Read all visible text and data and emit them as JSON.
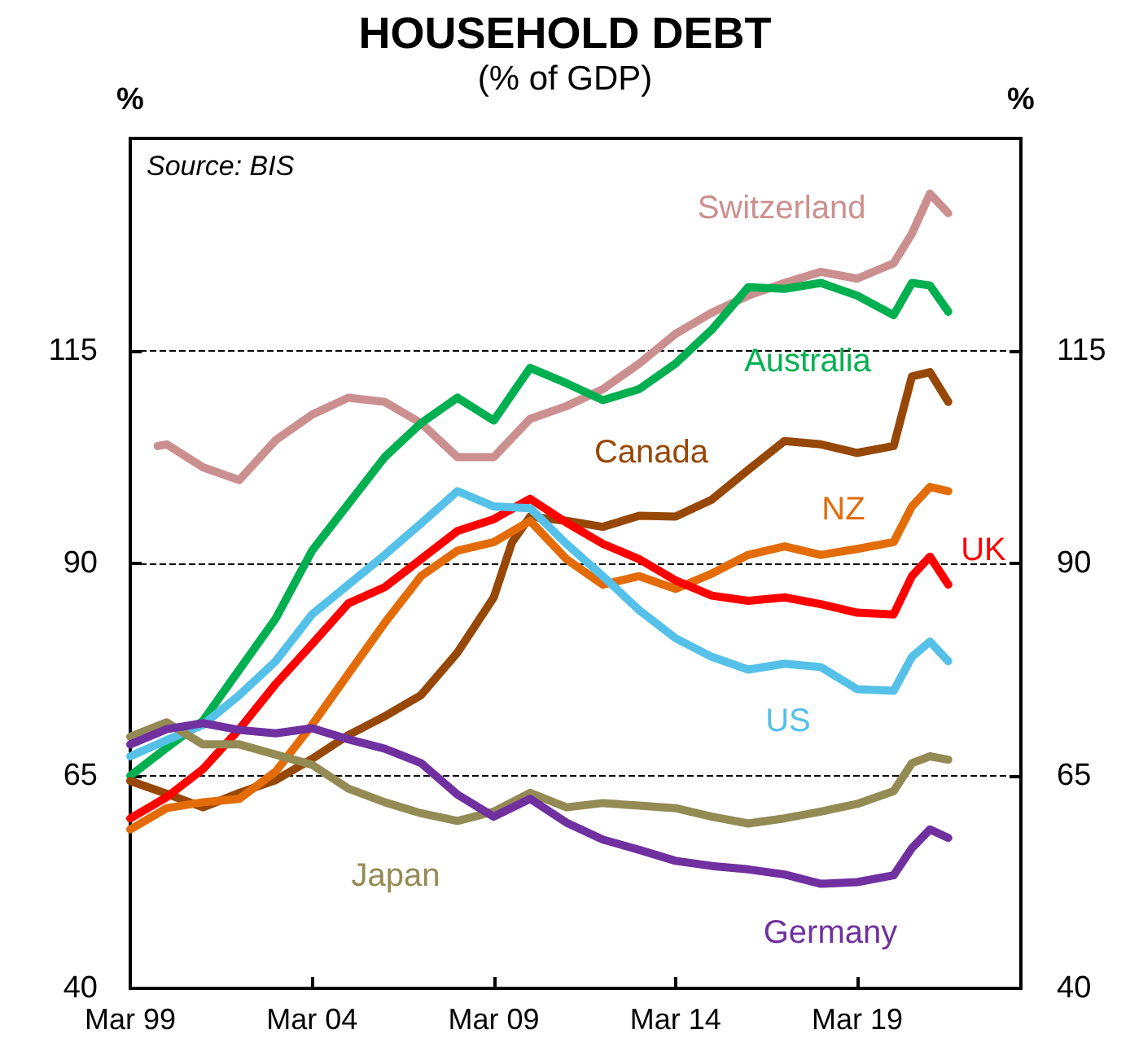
{
  "chart_data": {
    "type": "line",
    "title": "HOUSEHOLD DEBT",
    "subtitle": "(% of GDP)",
    "ylabel": "%",
    "y2label": "%",
    "annotations": [
      "Source: BIS"
    ],
    "x": [
      "1999-03",
      "2000-03",
      "2001-03",
      "2002-03",
      "2003-03",
      "2004-03",
      "2005-03",
      "2006-03",
      "2007-03",
      "2008-03",
      "2009-03",
      "2010-03",
      "2011-03",
      "2012-03",
      "2013-03",
      "2014-03",
      "2015-03",
      "2016-03",
      "2017-03",
      "2018-03",
      "2019-03",
      "2020-03",
      "2020-09",
      "2021-03",
      "2021-09"
    ],
    "xlim": [
      "1999-03",
      "2023-09"
    ],
    "xticks": [
      {
        "value": "1999-03",
        "label": "Mar 99"
      },
      {
        "value": "2004-03",
        "label": "Mar 04"
      },
      {
        "value": "2009-03",
        "label": "Mar 09"
      },
      {
        "value": "2014-03",
        "label": "Mar 14"
      },
      {
        "value": "2019-03",
        "label": "Mar 19"
      }
    ],
    "ylim": [
      40,
      140
    ],
    "yticks": [
      40,
      65,
      90,
      115
    ],
    "y2lim": [
      40,
      140
    ],
    "y2ticks": [
      40,
      65,
      90,
      115
    ],
    "grid": "y",
    "legend": false,
    "marker": "none",
    "line_style": "solid",
    "series": [
      {
        "name": "Switzerland",
        "color": "#cc8f8f",
        "x": [
          "1999-12",
          "2000-03",
          "2001-03",
          "2002-03",
          "2003-03",
          "2004-03",
          "2005-03",
          "2006-03",
          "2007-03",
          "2008-03",
          "2009-03",
          "2010-03",
          "2011-03",
          "2012-03",
          "2013-03",
          "2014-03",
          "2015-03",
          "2016-03",
          "2017-03",
          "2018-03",
          "2019-03",
          "2020-03",
          "2020-09",
          "2021-03",
          "2021-09"
        ],
        "values": [
          103.8,
          104,
          101.3,
          99.8,
          104.5,
          107.5,
          109.5,
          109,
          106.5,
          102.5,
          102.5,
          107,
          108.5,
          110.5,
          113.5,
          117,
          119.5,
          121.5,
          123,
          124.3,
          123.5,
          125.3,
          128.8,
          133.5,
          131.2
        ]
      },
      {
        "name": "Australia",
        "color": "#00b050",
        "values": [
          65,
          68.3,
          71.5,
          77.5,
          83.5,
          91.5,
          97,
          102.5,
          106.5,
          109.5,
          106.8,
          113,
          111.2,
          109.2,
          110.5,
          113.5,
          117.5,
          122.5,
          122.3,
          123,
          121.5,
          119.2,
          123,
          122.7,
          119.6
        ]
      },
      {
        "name": "Canada",
        "color": "#974706",
        "x": [
          "1999-03",
          "2000-03",
          "2001-03",
          "2002-03",
          "2003-03",
          "2004-03",
          "2005-03",
          "2006-03",
          "2007-03",
          "2008-03",
          "2009-03",
          "2009-09",
          "2010-03",
          "2011-03",
          "2012-03",
          "2013-03",
          "2014-03",
          "2015-03",
          "2016-03",
          "2017-03",
          "2018-03",
          "2019-03",
          "2020-03",
          "2020-09",
          "2021-03",
          "2021-09"
        ],
        "values": [
          64.4,
          62.9,
          61.3,
          63,
          64.5,
          67,
          69.8,
          72,
          74.5,
          79.5,
          86,
          92.5,
          95.5,
          95,
          94.3,
          95.6,
          95.5,
          97.5,
          101,
          104.4,
          104,
          103,
          103.8,
          112,
          112.5,
          109
        ]
      },
      {
        "name": "NZ",
        "color": "#e36c09",
        "values": [
          58.7,
          61.2,
          61.9,
          62.3,
          65.5,
          71,
          77,
          83,
          88.5,
          91.5,
          92.5,
          95,
          90.5,
          87.5,
          88.5,
          87,
          88.8,
          91,
          92,
          91,
          91.7,
          92.5,
          96.7,
          99,
          98.5
        ]
      },
      {
        "name": "UK",
        "color": "#ff0000",
        "values": [
          60,
          62.5,
          65.8,
          70.5,
          75.8,
          80.5,
          85.3,
          87.2,
          90.5,
          93.8,
          95.2,
          97.6,
          94.8,
          92.3,
          90.5,
          88,
          86.2,
          85.6,
          86,
          85.2,
          84.2,
          84,
          88.5,
          90.8,
          87.5
        ]
      },
      {
        "name": "US",
        "color": "#55c1e8",
        "values": [
          67.3,
          69.2,
          71,
          74.5,
          78.5,
          84,
          87.5,
          91,
          94.7,
          98.5,
          96.7,
          96.5,
          92.3,
          88.5,
          84.5,
          81.2,
          79,
          77.5,
          78.2,
          77.8,
          75.2,
          75,
          79,
          80.8,
          78.5
        ]
      },
      {
        "name": "Japan",
        "color": "#948a54",
        "values": [
          69.6,
          71.3,
          68.7,
          68.7,
          67.5,
          66.3,
          63.5,
          61.9,
          60.6,
          59.7,
          60.8,
          63,
          61.3,
          61.8,
          61.5,
          61.2,
          60.2,
          59.4,
          60,
          60.8,
          61.7,
          63.2,
          66.5,
          67.3,
          66.9
        ]
      },
      {
        "name": "Germany",
        "color": "#7030a0",
        "values": [
          68.7,
          70.5,
          71.2,
          70.4,
          70,
          70.6,
          69.3,
          68.2,
          66.5,
          62.8,
          60.2,
          62.3,
          59.5,
          57.5,
          56.3,
          55,
          54.4,
          54,
          53.4,
          52.3,
          52.5,
          53.3,
          56.5,
          58.7,
          57.7
        ]
      }
    ]
  }
}
